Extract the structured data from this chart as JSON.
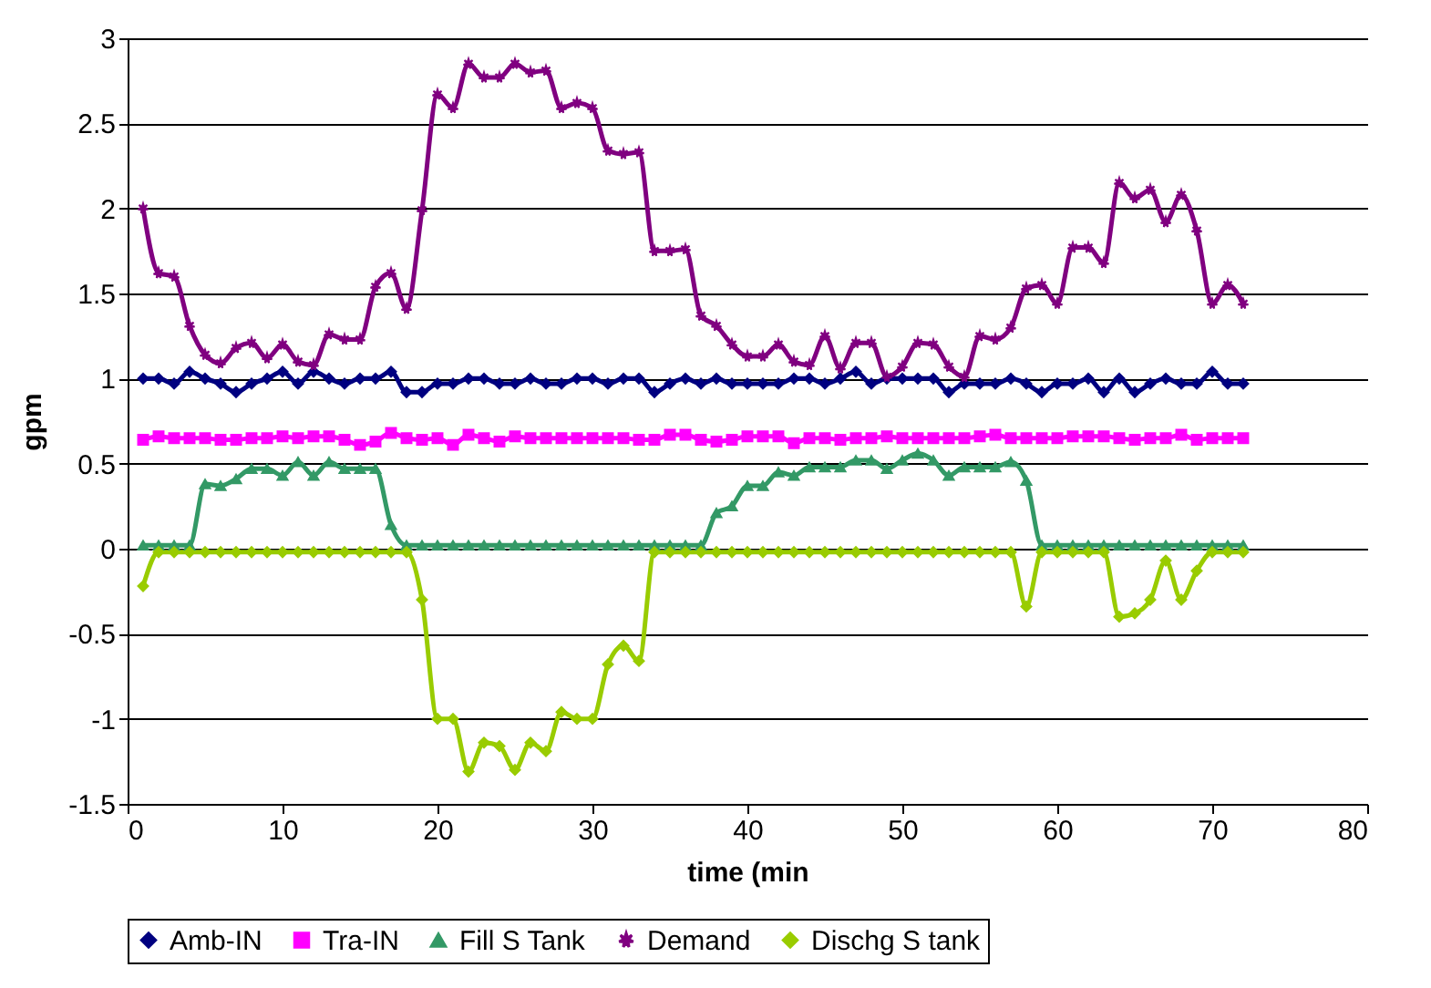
{
  "chart_data": {
    "type": "line",
    "xlabel": "time (min",
    "ylabel": "gpm",
    "x": [
      1,
      2,
      3,
      4,
      5,
      6,
      7,
      8,
      9,
      10,
      11,
      12,
      13,
      14,
      15,
      16,
      17,
      18,
      19,
      20,
      21,
      22,
      23,
      24,
      25,
      26,
      27,
      28,
      29,
      30,
      31,
      32,
      33,
      34,
      35,
      36,
      37,
      38,
      39,
      40,
      41,
      42,
      43,
      44,
      45,
      46,
      47,
      48,
      49,
      50,
      51,
      52,
      53,
      54,
      55,
      56,
      57,
      58,
      59,
      60,
      61,
      62,
      63,
      64,
      65,
      66,
      67,
      68,
      69,
      70,
      71,
      72
    ],
    "xlim": [
      0,
      80
    ],
    "xticks": [
      0,
      10,
      20,
      30,
      40,
      50,
      60,
      70,
      80
    ],
    "ylim": [
      -1.5,
      3
    ],
    "yticks": [
      -1.5,
      -1,
      -0.5,
      0,
      0.5,
      1,
      1.5,
      2,
      2.5,
      3
    ],
    "grid": "y",
    "legend": "bottom",
    "series": [
      {
        "name": "Amb-IN",
        "color": "#000080",
        "marker": "diamond",
        "values": [
          1.0,
          1.0,
          0.97,
          1.04,
          1.0,
          0.97,
          0.92,
          0.97,
          1.0,
          1.04,
          0.97,
          1.04,
          1.0,
          0.97,
          1.0,
          1.0,
          1.04,
          0.92,
          0.92,
          0.97,
          0.97,
          1.0,
          1.0,
          0.97,
          0.97,
          1.0,
          0.97,
          0.97,
          1.0,
          1.0,
          0.97,
          1.0,
          1.0,
          0.92,
          0.97,
          1.0,
          0.97,
          1.0,
          0.97,
          0.97,
          0.97,
          0.97,
          1.0,
          1.0,
          0.97,
          1.0,
          1.04,
          0.97,
          1.0,
          1.0,
          1.0,
          1.0,
          0.92,
          0.97,
          0.97,
          0.97,
          1.0,
          0.97,
          0.92,
          0.97,
          0.97,
          1.0,
          0.92,
          1.0,
          0.92,
          0.97,
          1.0,
          0.97,
          0.97,
          1.04,
          0.97,
          0.97
        ]
      },
      {
        "name": "Tra-IN",
        "color": "#ff00ff",
        "marker": "square",
        "values": [
          0.64,
          0.66,
          0.65,
          0.65,
          0.65,
          0.64,
          0.64,
          0.65,
          0.65,
          0.66,
          0.65,
          0.66,
          0.66,
          0.64,
          0.61,
          0.63,
          0.68,
          0.65,
          0.64,
          0.65,
          0.61,
          0.67,
          0.65,
          0.63,
          0.66,
          0.65,
          0.65,
          0.65,
          0.65,
          0.65,
          0.65,
          0.65,
          0.64,
          0.64,
          0.67,
          0.67,
          0.64,
          0.63,
          0.64,
          0.66,
          0.66,
          0.66,
          0.62,
          0.65,
          0.65,
          0.64,
          0.65,
          0.65,
          0.66,
          0.65,
          0.65,
          0.65,
          0.65,
          0.65,
          0.66,
          0.67,
          0.65,
          0.65,
          0.65,
          0.65,
          0.66,
          0.66,
          0.66,
          0.65,
          0.64,
          0.65,
          0.65,
          0.67,
          0.64,
          0.65,
          0.65,
          0.65
        ]
      },
      {
        "name": "Fill S Tank",
        "color": "#339966",
        "marker": "triangle",
        "values": [
          0.02,
          0.02,
          0.02,
          0.02,
          0.38,
          0.37,
          0.41,
          0.47,
          0.47,
          0.43,
          0.51,
          0.43,
          0.51,
          0.47,
          0.47,
          0.47,
          0.14,
          0.02,
          0.02,
          0.02,
          0.02,
          0.02,
          0.02,
          0.02,
          0.02,
          0.02,
          0.02,
          0.02,
          0.02,
          0.02,
          0.02,
          0.02,
          0.02,
          0.02,
          0.02,
          0.02,
          0.02,
          0.21,
          0.25,
          0.37,
          0.37,
          0.45,
          0.43,
          0.48,
          0.48,
          0.48,
          0.52,
          0.52,
          0.47,
          0.52,
          0.56,
          0.52,
          0.43,
          0.48,
          0.48,
          0.48,
          0.51,
          0.4,
          0.02,
          0.02,
          0.02,
          0.02,
          0.02,
          0.02,
          0.02,
          0.02,
          0.02,
          0.02,
          0.02,
          0.02,
          0.02,
          0.02
        ]
      },
      {
        "name": "Demand",
        "color": "#800080",
        "marker": "star",
        "values": [
          2.0,
          1.62,
          1.6,
          1.31,
          1.14,
          1.09,
          1.18,
          1.21,
          1.12,
          1.2,
          1.1,
          1.08,
          1.26,
          1.23,
          1.23,
          1.54,
          1.62,
          1.41,
          1.99,
          2.67,
          2.59,
          2.85,
          2.77,
          2.77,
          2.85,
          2.8,
          2.81,
          2.59,
          2.62,
          2.59,
          2.34,
          2.32,
          2.33,
          1.75,
          1.75,
          1.76,
          1.37,
          1.31,
          1.2,
          1.13,
          1.13,
          1.2,
          1.1,
          1.08,
          1.25,
          1.06,
          1.21,
          1.21,
          1.01,
          1.07,
          1.21,
          1.2,
          1.07,
          1.01,
          1.25,
          1.23,
          1.3,
          1.53,
          1.55,
          1.44,
          1.77,
          1.77,
          1.68,
          2.15,
          2.06,
          2.11,
          1.92,
          2.08,
          1.87,
          1.44,
          1.55,
          1.44
        ]
      },
      {
        "name": "Dischg S tank",
        "color": "#99cc00",
        "marker": "diamond",
        "values": [
          -0.22,
          -0.02,
          -0.02,
          -0.02,
          -0.02,
          -0.02,
          -0.02,
          -0.02,
          -0.02,
          -0.02,
          -0.02,
          -0.02,
          -0.02,
          -0.02,
          -0.02,
          -0.02,
          -0.02,
          -0.02,
          -0.3,
          -1.0,
          -1.0,
          -1.31,
          -1.14,
          -1.16,
          -1.3,
          -1.14,
          -1.19,
          -0.96,
          -1.0,
          -1.0,
          -0.68,
          -0.57,
          -0.66,
          -0.02,
          -0.02,
          -0.02,
          -0.02,
          -0.02,
          -0.02,
          -0.02,
          -0.02,
          -0.02,
          -0.02,
          -0.02,
          -0.02,
          -0.02,
          -0.02,
          -0.02,
          -0.02,
          -0.02,
          -0.02,
          -0.02,
          -0.02,
          -0.02,
          -0.02,
          -0.02,
          -0.02,
          -0.34,
          -0.02,
          -0.02,
          -0.02,
          -0.02,
          -0.02,
          -0.4,
          -0.38,
          -0.3,
          -0.07,
          -0.3,
          -0.13,
          -0.02,
          -0.02,
          -0.02
        ]
      }
    ]
  }
}
